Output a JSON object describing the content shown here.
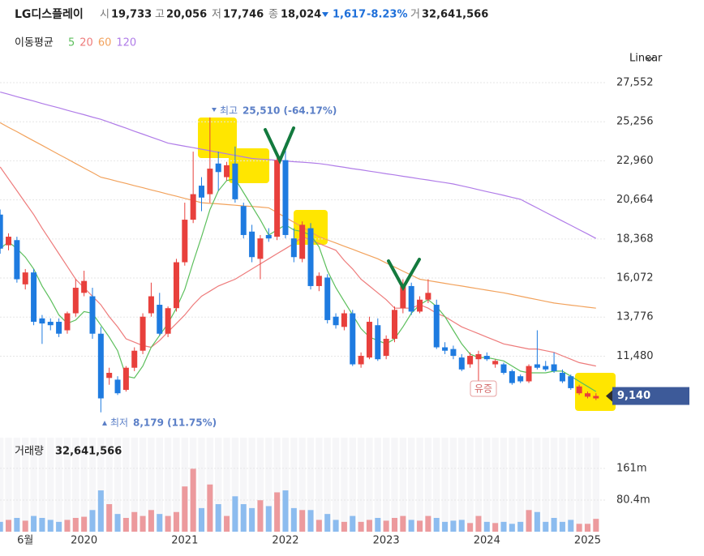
{
  "header": {
    "name": "LG디스플레이",
    "open_label": "시",
    "open": "19,733",
    "high_label": "고",
    "high": "20,056",
    "low_label": "저",
    "low": "17,746",
    "close_label": "종",
    "close": "18,024",
    "change": "1,617",
    "change_pct": "-8.23%",
    "volume_label": "거",
    "volume": "32,641,566"
  },
  "scale_button": "Linear",
  "chart_data": [
    {
      "type": "candlestick",
      "ma_label": "이동평균",
      "categories": [
        null,
        null,
        null,
        "6월",
        null,
        null,
        null,
        null,
        null,
        null,
        "2020",
        null,
        null,
        null,
        null,
        null,
        null,
        null,
        null,
        null,
        null,
        null,
        "2021",
        null,
        null,
        null,
        null,
        null,
        null,
        null,
        null,
        null,
        null,
        null,
        "2022",
        null,
        null,
        null,
        null,
        null,
        null,
        null,
        null,
        null,
        null,
        null,
        "2023",
        null,
        null,
        null,
        null,
        null,
        null,
        null,
        null,
        null,
        null,
        null,
        "2024",
        null,
        null,
        null,
        null,
        null,
        null,
        null,
        null,
        null,
        null,
        null,
        "2025",
        null
      ],
      "open": [
        19800,
        18000,
        18300,
        15700,
        16400,
        13700,
        13500,
        13500,
        13000,
        14000,
        15200,
        15000,
        12800,
        10200,
        10100,
        9500,
        10800,
        11800,
        14000,
        14500,
        12800,
        14300,
        17000,
        19500,
        21500,
        21000,
        22800,
        22000,
        22800,
        20300,
        18800,
        17200,
        18600,
        18500,
        23000,
        18400,
        17200,
        19000,
        15600,
        16100,
        13800,
        13200,
        14000,
        11000,
        11400,
        13300,
        11500,
        12500,
        14300,
        15600,
        14100,
        14800,
        14500,
        12000,
        11900,
        11400,
        11000,
        11300,
        11500,
        11000,
        11000,
        10600,
        10300,
        10000,
        11000,
        10900,
        11000,
        10500,
        10300,
        9300,
        9100,
        9000
      ],
      "high": [
        20100,
        18700,
        18500,
        16600,
        16600,
        13900,
        13700,
        13700,
        14100,
        16000,
        16500,
        15500,
        13200,
        10800,
        10300,
        10900,
        12000,
        14000,
        15800,
        15200,
        14400,
        17200,
        20500,
        23500,
        22000,
        25510,
        23500,
        22900,
        23800,
        20500,
        19200,
        18600,
        19000,
        23200,
        24000,
        19000,
        19400,
        19300,
        16400,
        16300,
        14000,
        14200,
        14200,
        11700,
        13800,
        13700,
        12700,
        14400,
        16000,
        15800,
        15000,
        16000,
        14800,
        12300,
        12100,
        11600,
        11700,
        11800,
        11700,
        11300,
        11100,
        10700,
        10400,
        11000,
        13000,
        11200,
        11700,
        10700,
        10400,
        9800,
        9400,
        9300
      ],
      "low": [
        17500,
        17700,
        15800,
        15400,
        13300,
        12200,
        13000,
        12600,
        12800,
        13800,
        15000,
        12500,
        8179,
        9800,
        9200,
        9400,
        10600,
        11600,
        13800,
        12700,
        12600,
        14100,
        16800,
        19300,
        20000,
        20500,
        21200,
        21800,
        20500,
        18400,
        17000,
        16000,
        18200,
        18300,
        18400,
        17000,
        17000,
        15400,
        15300,
        13400,
        13100,
        13000,
        10900,
        10800,
        11300,
        11200,
        11300,
        12300,
        14000,
        13900,
        14000,
        14600,
        11900,
        11600,
        11300,
        10600,
        10800,
        10000,
        11200,
        10800,
        10400,
        9800,
        9900,
        9900,
        10700,
        10600,
        10500,
        9900,
        9500,
        9200,
        9000,
        8900
      ],
      "close": [
        17800,
        18500,
        16000,
        16400,
        13500,
        13400,
        13300,
        12800,
        14000,
        15500,
        15900,
        12800,
        9000,
        10500,
        9300,
        10800,
        11800,
        13800,
        15000,
        12800,
        14300,
        17000,
        19500,
        21000,
        20800,
        22500,
        22300,
        22700,
        20700,
        18600,
        17300,
        18400,
        18400,
        23000,
        18600,
        17300,
        19200,
        15600,
        16200,
        13600,
        13300,
        14000,
        11000,
        11500,
        13500,
        11300,
        12500,
        14200,
        15600,
        14100,
        14800,
        15200,
        12000,
        11800,
        11500,
        10700,
        11500,
        11600,
        11300,
        11200,
        10500,
        9900,
        10000,
        10900,
        10800,
        10700,
        10600,
        10000,
        9600,
        9700,
        9300,
        9140
      ],
      "up_color": "#e8403c",
      "down_color": "#1e7be0",
      "moving_averages": [
        {
          "name": "5",
          "color": "#5cbf5c",
          "values": [
            17800,
            18200,
            17800,
            17300,
            16600,
            15600,
            14800,
            13900,
            13400,
            13600,
            14100,
            14000,
            13300,
            12600,
            11800,
            10300,
            10200,
            10900,
            12000,
            12700,
            13400,
            14300,
            15400,
            17000,
            18500,
            20100,
            21200,
            21800,
            21900,
            21100,
            20300,
            19500,
            18600,
            18900,
            19200,
            18900,
            18800,
            18600,
            17900,
            16500,
            15500,
            14700,
            13900,
            13100,
            12600,
            12400,
            12200,
            12500,
            13200,
            14000,
            14500,
            14800,
            14400,
            13800,
            13000,
            12200,
            11600,
            11400,
            11400,
            11300,
            11200,
            10900,
            10600,
            10500,
            10500,
            10500,
            10600,
            10600,
            10300,
            10000,
            9700,
            9400
          ]
        },
        {
          "name": "20",
          "color": "#ee7b7b",
          "values": [
            22600,
            21900,
            21200,
            20500,
            19800,
            19000,
            18250,
            17500,
            16750,
            16000,
            15500,
            15000,
            14500,
            13800,
            13200,
            12500,
            12300,
            12100,
            12000,
            12400,
            12900,
            13400,
            13900,
            14500,
            15000,
            15300,
            15600,
            15800,
            16000,
            16300,
            16600,
            16900,
            17200,
            17500,
            17800,
            18100,
            18500,
            18300,
            18100,
            17900,
            17700,
            17100,
            16600,
            16000,
            15600,
            15200,
            14800,
            14300,
            14300,
            14300,
            14500,
            14300,
            14000,
            13800,
            13500,
            13200,
            13000,
            12800,
            12600,
            12400,
            12200,
            12100,
            12000,
            11900,
            11900,
            11800,
            11700,
            11500,
            11300,
            11100,
            11000,
            10900
          ]
        },
        {
          "name": "60",
          "color": "#f2a25c",
          "values": [
            25200,
            24930,
            24670,
            24400,
            24130,
            23870,
            23600,
            23330,
            23070,
            22800,
            22530,
            22270,
            22000,
            21880,
            21750,
            21630,
            21500,
            21380,
            21250,
            21130,
            21000,
            20880,
            20750,
            20630,
            20500,
            20460,
            20430,
            20390,
            20350,
            20310,
            20280,
            20240,
            20200,
            19920,
            19630,
            19350,
            19070,
            18780,
            18500,
            18310,
            18130,
            17940,
            17760,
            17570,
            17390,
            17200,
            16960,
            16720,
            16480,
            16240,
            16000,
            15920,
            15840,
            15760,
            15680,
            15600,
            15520,
            15440,
            15360,
            15280,
            15200,
            15100,
            15000,
            14900,
            14800,
            14700,
            14600,
            14540,
            14480,
            14420,
            14360,
            14300
          ]
        },
        {
          "name": "120",
          "color": "#b07ce8",
          "values": [
            27000,
            26870,
            26730,
            26600,
            26470,
            26330,
            26200,
            26070,
            25930,
            25800,
            25670,
            25530,
            25400,
            25230,
            25050,
            24880,
            24700,
            24530,
            24350,
            24180,
            24000,
            23910,
            23820,
            23730,
            23640,
            23550,
            23460,
            23370,
            23280,
            23190,
            23100,
            23060,
            23030,
            22990,
            22950,
            22910,
            22880,
            22840,
            22800,
            22730,
            22650,
            22580,
            22500,
            22430,
            22350,
            22280,
            22200,
            22130,
            22050,
            21980,
            21900,
            21830,
            21750,
            21680,
            21600,
            21490,
            21380,
            21260,
            21150,
            21040,
            20930,
            20810,
            20700,
            20440,
            20190,
            19930,
            19680,
            19420,
            19170,
            18910,
            18660,
            18400
          ]
        }
      ],
      "ylim": [
        7000,
        28600
      ],
      "yticks": [
        {
          "value": 27552,
          "label": "27,552"
        },
        {
          "value": 25256,
          "label": "25,256"
        },
        {
          "value": 22960,
          "label": "22,960"
        },
        {
          "value": 20664,
          "label": "20,664"
        },
        {
          "value": 18368,
          "label": "18,368"
        },
        {
          "value": 16072,
          "label": "16,072"
        },
        {
          "value": 13776,
          "label": "13,776"
        },
        {
          "value": 11480,
          "label": "11,480"
        }
      ],
      "grid": true,
      "annotations": {
        "max_label": "최고",
        "max_value": "25,510 (-64.17%)",
        "min_label": "최저",
        "min_value": "8,179 (11.75%)",
        "event": "유증"
      },
      "price_tag": "9,140"
    },
    {
      "type": "volume",
      "title": "거래량",
      "subtitle": "32,641,566",
      "values": [
        25,
        30,
        35,
        28,
        40,
        35,
        30,
        25,
        30,
        35,
        38,
        55,
        105,
        70,
        45,
        35,
        50,
        40,
        55,
        45,
        40,
        50,
        115,
        160,
        60,
        120,
        70,
        40,
        90,
        70,
        60,
        80,
        65,
        100,
        105,
        60,
        55,
        55,
        30,
        45,
        30,
        25,
        40,
        25,
        30,
        35,
        28,
        35,
        40,
        30,
        28,
        40,
        35,
        25,
        28,
        30,
        22,
        40,
        25,
        22,
        25,
        20,
        25,
        55,
        50,
        25,
        35,
        25,
        30,
        20,
        20,
        32.641566
      ],
      "up_color": "#ec9a9d",
      "down_color": "#8cbcef",
      "ylim": [
        0,
        239
      ],
      "yticks": [
        {
          "value": 80.4,
          "label": "80.4m"
        },
        {
          "value": 161,
          "label": "161m"
        }
      ]
    }
  ]
}
